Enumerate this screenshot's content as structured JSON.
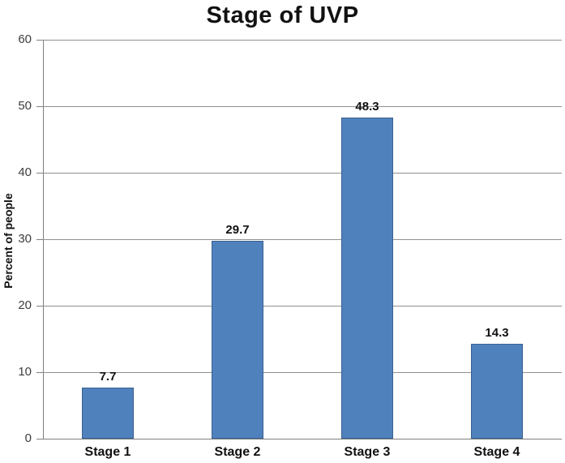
{
  "chart_data": {
    "type": "bar",
    "title": "Stage of UVP",
    "categories": [
      "Stage 1",
      "Stage 2",
      "Stage 3",
      "Stage 4"
    ],
    "values": [
      7.7,
      29.7,
      48.3,
      14.3
    ],
    "data_labels": [
      "7.7",
      "29.7",
      "48.3",
      "14.3"
    ],
    "xlabel": "",
    "ylabel": "Percent of people",
    "ylim": [
      0,
      60
    ],
    "yticks": [
      0,
      10,
      20,
      30,
      40,
      50,
      60
    ],
    "grid": true,
    "legend": "none",
    "colors": {
      "bar_fill": "#4f81bd",
      "bar_border": "#39618f",
      "gridline": "#909090",
      "axis": "#7f7f7f",
      "title_text": "#111111",
      "tick_label_text": "#3d3d3d",
      "label_text": "#111111"
    }
  }
}
